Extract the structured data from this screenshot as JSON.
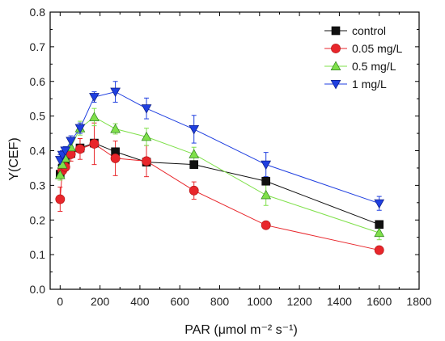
{
  "chart_data": {
    "type": "scatter",
    "xlabel": "PAR (μmol m⁻² s⁻¹)",
    "ylabel": "Y(CEF)",
    "xlim": [
      -50,
      1800
    ],
    "ylim": [
      0.0,
      0.8
    ],
    "xticks": [
      0,
      200,
      400,
      600,
      800,
      1000,
      1200,
      1400,
      1600,
      1800
    ],
    "yticks": [
      0.0,
      0.1,
      0.2,
      0.3,
      0.4,
      0.5,
      0.6,
      0.7,
      0.8
    ],
    "x": [
      0,
      11,
      26,
      54,
      100,
      171,
      277,
      433,
      671,
      1032,
      1600
    ],
    "legend_position": "top-right",
    "series": [
      {
        "name": "control",
        "marker": "square",
        "color": "#111111",
        "values": [
          0.332,
          0.35,
          0.365,
          0.392,
          0.408,
          0.422,
          0.397,
          0.367,
          0.36,
          0.312,
          0.187
        ],
        "errors": [
          0.01,
          0.01,
          0.01,
          0.01,
          0.01,
          0.01,
          0.01,
          0.01,
          0.01,
          0.01,
          0.01
        ]
      },
      {
        "name": "0.05 mg/L",
        "marker": "circle",
        "color": "#e8262b",
        "values": [
          0.26,
          0.343,
          0.353,
          0.39,
          0.405,
          0.42,
          0.378,
          0.37,
          0.285,
          0.185,
          0.113
        ],
        "errors": [
          0.035,
          0.012,
          0.01,
          0.02,
          0.03,
          0.06,
          0.05,
          0.045,
          0.025,
          0.008,
          0.005
        ]
      },
      {
        "name": "0.5 mg/L",
        "marker": "triangle-up",
        "color": "#7fe04a",
        "values": [
          0.33,
          0.36,
          0.378,
          0.41,
          0.465,
          0.497,
          0.463,
          0.44,
          0.39,
          0.272,
          0.163
        ],
        "errors": [
          0.015,
          0.012,
          0.012,
          0.015,
          0.02,
          0.025,
          0.015,
          0.025,
          0.02,
          0.03,
          0.02
        ]
      },
      {
        "name": "1 mg/L",
        "marker": "triangle-down",
        "color": "#1f3fe0",
        "values": [
          0.373,
          0.388,
          0.4,
          0.428,
          0.465,
          0.555,
          0.57,
          0.522,
          0.462,
          0.36,
          0.248
        ],
        "errors": [
          0.015,
          0.012,
          0.012,
          0.015,
          0.015,
          0.015,
          0.03,
          0.03,
          0.04,
          0.035,
          0.02
        ]
      }
    ]
  }
}
